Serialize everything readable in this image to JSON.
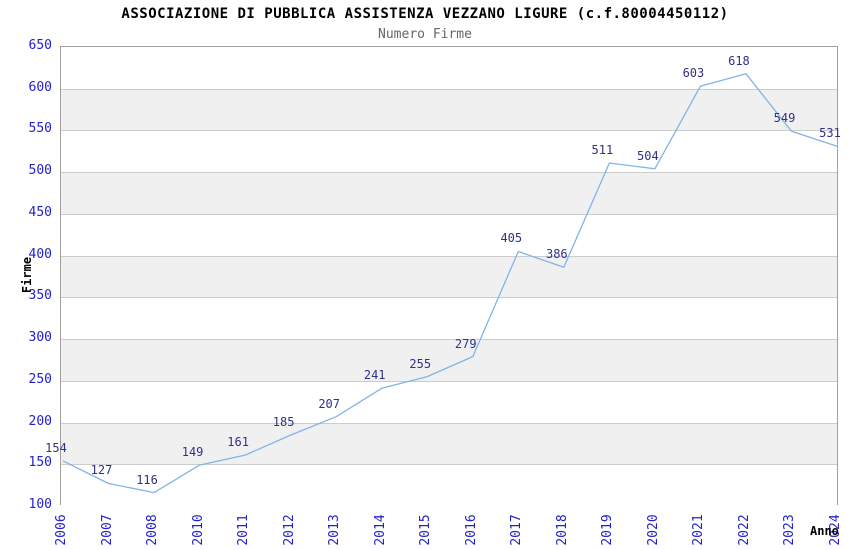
{
  "title": "ASSOCIAZIONE DI PUBBLICA ASSISTENZA VEZZANO LIGURE (c.f.80004450112)",
  "subtitle": "Numero Firme",
  "chart_data": {
    "type": "line",
    "title": "ASSOCIAZIONE DI PUBBLICA ASSISTENZA VEZZANO LIGURE (c.f.80004450112)",
    "subtitle": "Numero Firme",
    "xlabel": "Anno",
    "ylabel": "Firme",
    "categories": [
      "2006",
      "2007",
      "2008",
      "2010",
      "2011",
      "2012",
      "2013",
      "2014",
      "2015",
      "2016",
      "2017",
      "2018",
      "2019",
      "2020",
      "2021",
      "2022",
      "2023",
      "2024"
    ],
    "values": [
      154,
      127,
      116,
      149,
      161,
      185,
      207,
      241,
      255,
      279,
      405,
      386,
      511,
      504,
      603,
      618,
      549,
      531
    ],
    "ylim": [
      100,
      650
    ],
    "ytick_step": 50,
    "grid": true,
    "legend_position": "none",
    "banding": "alternating horizontal stripes",
    "colors": {
      "line": "#82b4e6",
      "tick_text": "#2222cc",
      "point_label": "#30308a",
      "band_gray": "#f0f0f0",
      "gridline": "#cccccc",
      "plot_border": "#a0a0a0",
      "title_text": "#000000",
      "subtitle_text": "#666666",
      "axis_title_text": "#000000",
      "background": "#ffffff"
    }
  }
}
